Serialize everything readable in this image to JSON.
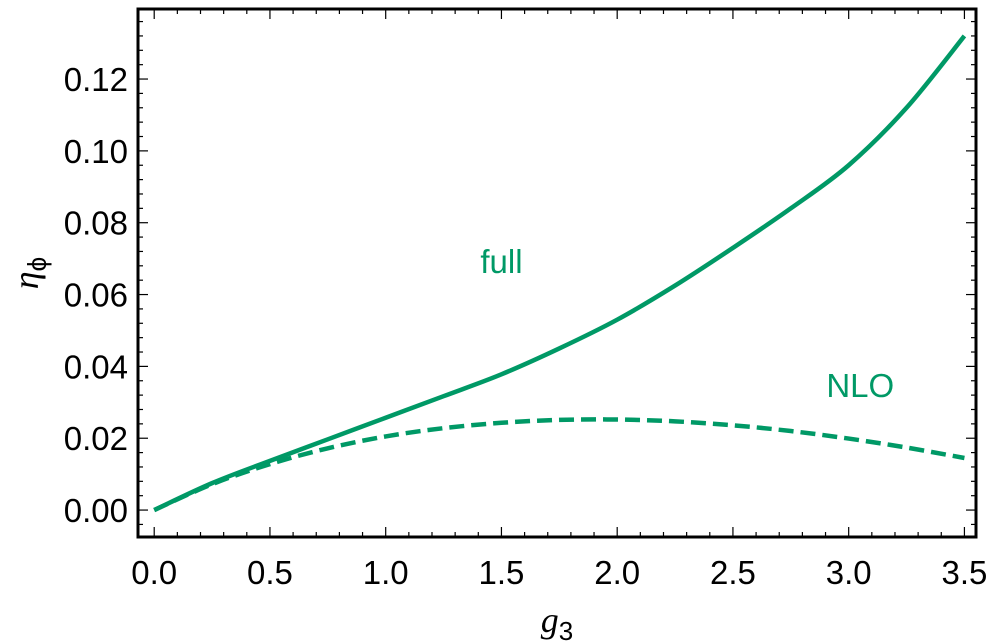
{
  "chart_data": {
    "type": "line",
    "xlabel": {
      "main": "g",
      "sub": "3"
    },
    "ylabel": {
      "main": "η",
      "sub": "ϕ"
    },
    "xlim": [
      -0.07,
      3.55
    ],
    "ylim": [
      -0.0075,
      0.1395
    ],
    "xticks": [
      0.0,
      0.5,
      1.0,
      1.5,
      2.0,
      2.5,
      3.0,
      3.5
    ],
    "xtick_labels": [
      "0.0",
      "0.5",
      "1.0",
      "1.5",
      "2.0",
      "2.5",
      "3.0",
      "3.5"
    ],
    "yticks": [
      0.0,
      0.02,
      0.04,
      0.06,
      0.08,
      0.1,
      0.12
    ],
    "ytick_labels": [
      "0.00",
      "0.02",
      "0.04",
      "0.06",
      "0.08",
      "0.10",
      "0.12"
    ],
    "grid": false,
    "color": "#009966",
    "series": [
      {
        "name": "full",
        "style": "solid",
        "x": [
          0.0,
          0.25,
          0.5,
          0.75,
          1.0,
          1.25,
          1.5,
          1.75,
          2.0,
          2.25,
          2.5,
          2.75,
          3.0,
          3.25,
          3.5
        ],
        "y": [
          0.0,
          0.0075,
          0.0137,
          0.0197,
          0.0257,
          0.0317,
          0.0378,
          0.045,
          0.053,
          0.0625,
          0.073,
          0.084,
          0.096,
          0.112,
          0.132
        ]
      },
      {
        "name": "NLO",
        "style": "dashed",
        "x": [
          0.0,
          0.25,
          0.5,
          0.75,
          1.0,
          1.25,
          1.5,
          1.75,
          2.0,
          2.25,
          2.5,
          2.75,
          3.0,
          3.25,
          3.5
        ],
        "y": [
          0.0,
          0.0072,
          0.0128,
          0.0172,
          0.0205,
          0.0228,
          0.0243,
          0.0251,
          0.0252,
          0.0247,
          0.0236,
          0.022,
          0.0199,
          0.0174,
          0.0145
        ]
      }
    ],
    "annotations": [
      {
        "text": "full",
        "x": 1.5,
        "y": 0.069
      },
      {
        "text": "NLO",
        "x": 3.05,
        "y": 0.0345
      }
    ]
  }
}
